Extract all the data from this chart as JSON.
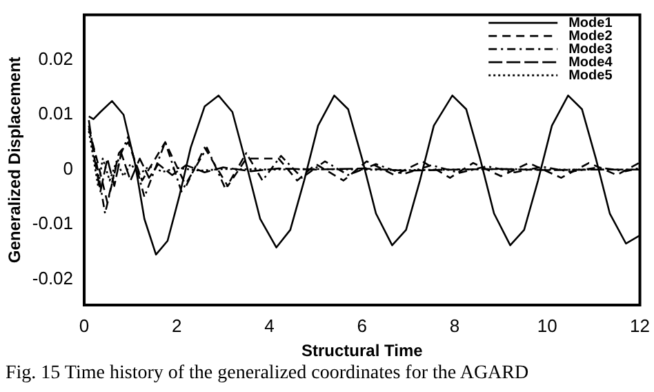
{
  "chart_data": {
    "type": "line",
    "xlabel": "Structural Time",
    "ylabel": "Generalized Displacement",
    "xlim": [
      0,
      12
    ],
    "ylim": [
      -0.0247,
      0.0282
    ],
    "xticks": [
      0,
      2,
      4,
      6,
      8,
      10,
      12
    ],
    "yticks": [
      -0.02,
      -0.01,
      0,
      0.01,
      0.02
    ],
    "grid": false,
    "legend": "top right",
    "marker": "none",
    "annotations": [
      "Fig. 15   Time history of the generalized coordinates for the AGARD"
    ],
    "series": [
      {
        "name": "Mode1",
        "color": "#000000",
        "line_style": "solid",
        "x": [
          0.1,
          0.2,
          0.35,
          0.6,
          0.85,
          1.1,
          1.3,
          1.55,
          1.8,
          2.05,
          2.3,
          2.6,
          2.9,
          3.2,
          3.5,
          3.8,
          4.15,
          4.45,
          4.75,
          5.05,
          5.4,
          5.7,
          6.0,
          6.3,
          6.65,
          6.95,
          7.25,
          7.55,
          7.95,
          8.25,
          8.55,
          8.85,
          9.2,
          9.5,
          9.8,
          10.1,
          10.45,
          10.75,
          11.05,
          11.35,
          11.7,
          12
        ],
        "values": [
          0.0097,
          0.0092,
          0.0105,
          0.0125,
          0.01,
          0.001,
          -0.009,
          -0.0155,
          -0.013,
          -0.005,
          0.004,
          0.0115,
          0.0135,
          0.0105,
          0.001,
          -0.009,
          -0.0142,
          -0.011,
          -0.002,
          0.008,
          0.0135,
          0.011,
          0.002,
          -0.008,
          -0.0138,
          -0.011,
          -0.002,
          0.008,
          0.0135,
          0.011,
          0.002,
          -0.008,
          -0.0138,
          -0.011,
          -0.002,
          0.008,
          0.0135,
          0.011,
          0.002,
          -0.008,
          -0.0135,
          -0.012
        ]
      },
      {
        "name": "Mode2",
        "color": "#000000",
        "line_style": "dashed",
        "x": [
          0.1,
          0.3,
          0.5,
          0.75,
          0.95,
          1.25,
          1.75,
          2.2,
          2.6,
          3.1,
          3.5,
          4.2,
          4.6,
          5.0,
          5.6,
          6.1,
          6.7,
          7.3,
          7.9,
          8.4,
          9.0,
          9.6,
          10.3,
          10.9,
          11.5,
          12
        ],
        "values": [
          0.0075,
          0.001,
          -0.006,
          0.003,
          0.005,
          -0.002,
          0.005,
          -0.003,
          0.004,
          -0.003,
          0.002,
          0.002,
          -0.002,
          0.001,
          -0.002,
          0.0015,
          -0.001,
          0.0015,
          -0.0015,
          0.0012,
          -0.0012,
          0.0012,
          -0.0015,
          0.0012,
          -0.001,
          0.0013
        ]
      },
      {
        "name": "Mode3",
        "color": "#000000",
        "line_style": "dashdot",
        "x": [
          0.1,
          0.25,
          0.45,
          0.7,
          0.95,
          1.3,
          1.75,
          2.1,
          2.65,
          3.05,
          3.5,
          3.85,
          4.25,
          4.7,
          5.2,
          5.7,
          6.3,
          6.9,
          7.5,
          8.1,
          8.7,
          9.3,
          9.9,
          10.5,
          11.1,
          11.7,
          12
        ],
        "values": [
          0.008,
          0.002,
          -0.008,
          0.001,
          0.006,
          -0.005,
          0.005,
          -0.004,
          0.004,
          -0.0035,
          0.003,
          -0.002,
          0.0025,
          -0.0015,
          0.0015,
          -0.001,
          0.001,
          -0.0008,
          0.0008,
          -0.0006,
          0.0006,
          -0.0005,
          0.0005,
          -0.0004,
          0.0004,
          -0.0003,
          0.0003
        ]
      },
      {
        "name": "Mode4",
        "color": "#000000",
        "line_style": "longdash",
        "x": [
          0.1,
          0.2,
          0.35,
          0.5,
          0.65,
          0.8,
          1.0,
          1.2,
          1.4,
          1.6,
          1.9,
          2.2,
          2.6,
          3.0,
          3.6,
          4.2,
          5.0,
          6.0,
          7.0,
          8.0,
          9.0,
          10.0,
          11.0,
          12
        ],
        "values": [
          0.009,
          0.003,
          -0.004,
          0.002,
          -0.003,
          0.003,
          -0.002,
          0.002,
          -0.0015,
          0.001,
          -0.001,
          0.0008,
          -0.0005,
          0.0004,
          -0.0003,
          0.0002,
          0,
          0.0002,
          -0.0002,
          0,
          0.0001,
          -0.0001,
          0,
          0
        ]
      },
      {
        "name": "Mode5",
        "color": "#000000",
        "line_style": "dotted",
        "x": [
          0.1,
          0.2,
          0.3,
          0.4,
          0.55,
          0.7,
          0.85,
          1.0,
          1.2,
          1.4,
          1.7,
          2.0,
          2.5,
          3.0,
          4.0,
          5.0,
          6.0,
          7.0,
          8.0,
          9.0,
          10.0,
          11.0,
          12
        ],
        "values": [
          0.007,
          0.002,
          -0.003,
          0.002,
          -0.002,
          0.0015,
          -0.0012,
          0.001,
          -0.0008,
          0.0006,
          -0.0004,
          0.0003,
          -0.0002,
          0.0001,
          0,
          0.0001,
          0,
          -0.0001,
          0,
          0.0001,
          0,
          0,
          0
        ]
      }
    ]
  }
}
